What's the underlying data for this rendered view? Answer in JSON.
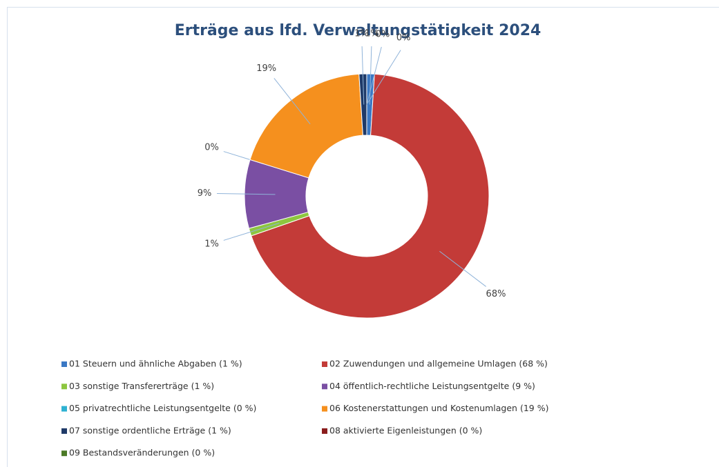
{
  "chart_data": {
    "type": "donut",
    "title": "Erträge aus lfd. Verwaltungstätigkeit 2024",
    "categories": [
      "01 Steuern und ähnliche Abgaben (1 %)",
      "02 Zuwendungen und allgemeine Umlagen (68 %)",
      "03 sonstige Transfererträge (1 %)",
      "04 öffentlich-rechtliche Leistungsentgelte (9 %)",
      "05 privatrechtliche Leistungsentgelte (0 %)",
      "06 Kostenerstattungen und Kostenumlagen (19 %)",
      "07 sonstige ordentliche Erträge (1 %)",
      "08 aktivierte Eigenleistungen (0 %)",
      "09 Bestandsveränderungen (0 %)"
    ],
    "values": [
      1,
      68,
      1,
      9,
      0,
      19,
      1,
      0,
      0
    ],
    "value_labels": [
      "1%",
      "68%",
      "1%",
      "9%",
      "0%",
      "19%",
      "1%",
      "0%",
      "0%"
    ],
    "colors": [
      "#3a78c4",
      "#c33b38",
      "#8dc63f",
      "#7a4fa3",
      "#2fb2d2",
      "#f5901e",
      "#1f3a68",
      "#8a1c1c",
      "#4b7a26"
    ],
    "legend": "bottom"
  }
}
